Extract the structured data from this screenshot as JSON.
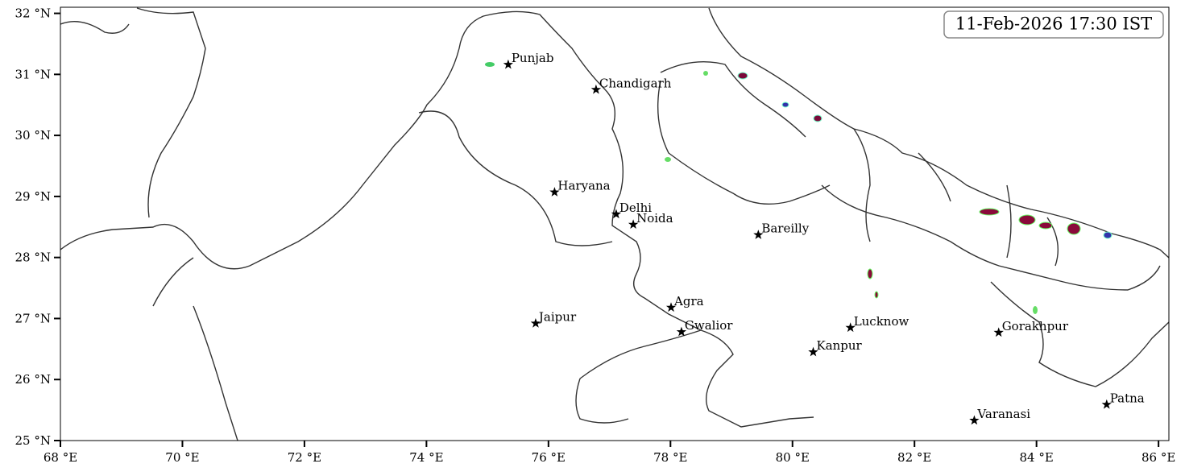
{
  "timestamp": "11-Feb-2026 17:30 IST",
  "map": {
    "xlim": [
      68,
      86.17
    ],
    "ylim": [
      25,
      32.1
    ],
    "xticks": [
      {
        "value": 68,
        "label": "68 °E"
      },
      {
        "value": 70,
        "label": "70 °E"
      },
      {
        "value": 72,
        "label": "72 °E"
      },
      {
        "value": 74,
        "label": "74 °E"
      },
      {
        "value": 76,
        "label": "76 °E"
      },
      {
        "value": 78,
        "label": "78 °E"
      },
      {
        "value": 80,
        "label": "80 °E"
      },
      {
        "value": 82,
        "label": "82 °E"
      },
      {
        "value": 84,
        "label": "84 °E"
      },
      {
        "value": 86,
        "label": "86 °E"
      }
    ],
    "yticks": [
      {
        "value": 25,
        "label": "25 °N"
      },
      {
        "value": 26,
        "label": "26 °N"
      },
      {
        "value": 27,
        "label": "27 °N"
      },
      {
        "value": 28,
        "label": "28 °N"
      },
      {
        "value": 29,
        "label": "29 °N"
      },
      {
        "value": 30,
        "label": "30 °N"
      },
      {
        "value": 31,
        "label": "31 °N"
      },
      {
        "value": 32,
        "label": "32 °N"
      }
    ],
    "cities": [
      {
        "name": "Punjab",
        "lon": 75.34,
        "lat": 31.16
      },
      {
        "name": "Chandigarh",
        "lon": 76.78,
        "lat": 30.75
      },
      {
        "name": "Haryana",
        "lon": 76.1,
        "lat": 29.07
      },
      {
        "name": "Delhi",
        "lon": 77.11,
        "lat": 28.71
      },
      {
        "name": "Noida",
        "lon": 77.39,
        "lat": 28.54
      },
      {
        "name": "Bareilly",
        "lon": 79.44,
        "lat": 28.37
      },
      {
        "name": "Agra",
        "lon": 78.01,
        "lat": 27.18
      },
      {
        "name": "Jaipur",
        "lon": 75.79,
        "lat": 26.92
      },
      {
        "name": "Gwalior",
        "lon": 78.18,
        "lat": 26.78
      },
      {
        "name": "Lucknow",
        "lon": 80.95,
        "lat": 26.85
      },
      {
        "name": "Kanpur",
        "lon": 80.34,
        "lat": 26.45
      },
      {
        "name": "Gorakhpur",
        "lon": 83.38,
        "lat": 26.77
      },
      {
        "name": "Varanasi",
        "lon": 82.98,
        "lat": 25.33
      },
      {
        "name": "Patna",
        "lon": 85.15,
        "lat": 25.59
      }
    ]
  }
}
